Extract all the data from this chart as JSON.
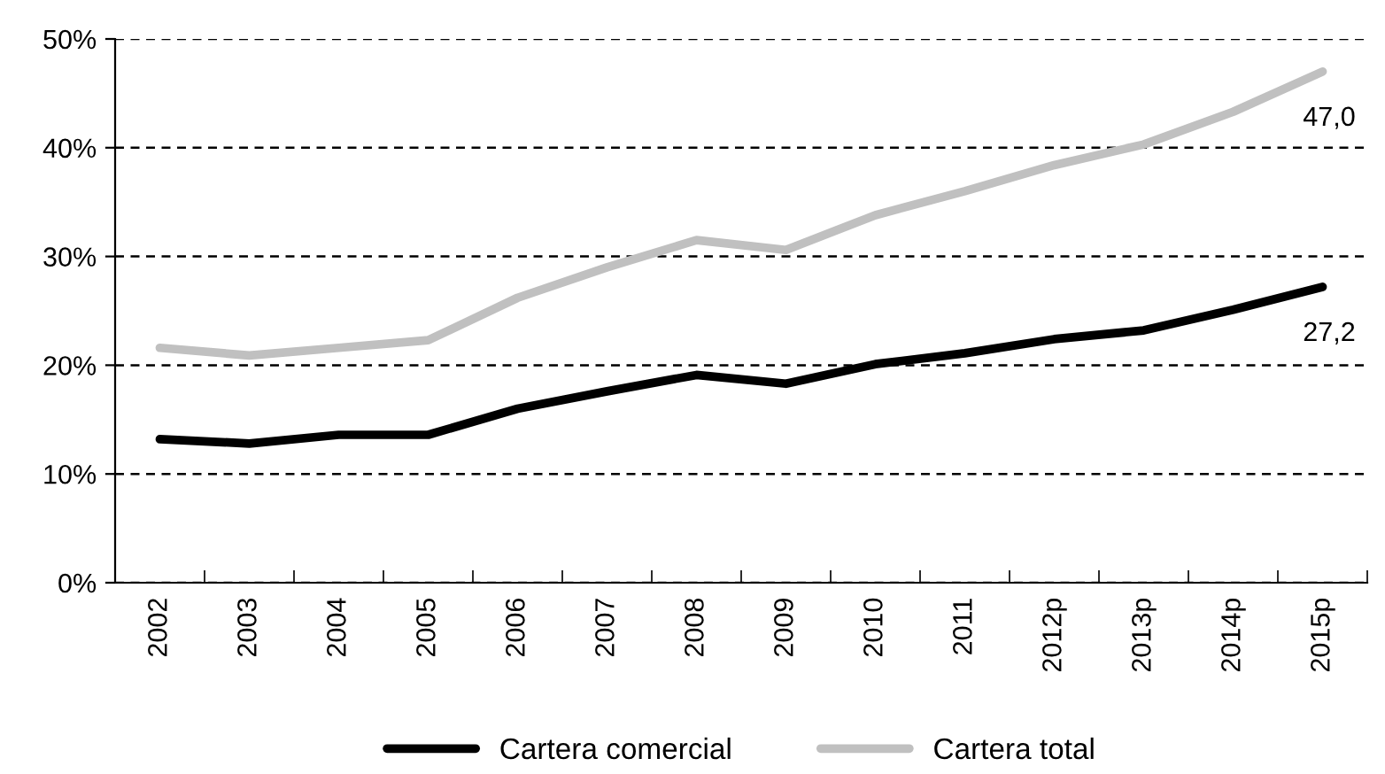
{
  "chart_data": {
    "type": "line",
    "categories": [
      "2002",
      "2003",
      "2004",
      "2005",
      "2006",
      "2007",
      "2008",
      "2009",
      "2010",
      "2011",
      "2012p",
      "2013p",
      "2014p",
      "2015p"
    ],
    "series": [
      {
        "name": "Cartera comercial",
        "color": "#000000",
        "values": [
          13.2,
          12.8,
          13.6,
          13.6,
          16.0,
          17.6,
          19.1,
          18.3,
          20.1,
          21.1,
          22.4,
          23.2,
          25.1,
          27.2
        ],
        "value_labels": [
          null,
          null,
          null,
          null,
          null,
          null,
          null,
          null,
          null,
          null,
          null,
          null,
          null,
          "27,2"
        ]
      },
      {
        "name": "Cartera total",
        "color": "#c0c0c0",
        "values": [
          21.6,
          20.9,
          21.6,
          22.3,
          26.2,
          29.0,
          31.5,
          30.6,
          33.8,
          36.0,
          38.4,
          40.3,
          43.3,
          47.0
        ],
        "value_labels": [
          null,
          null,
          null,
          null,
          null,
          null,
          null,
          null,
          null,
          null,
          null,
          null,
          null,
          "47,0"
        ]
      }
    ],
    "ylim": [
      0,
      50
    ],
    "yticks": [
      {
        "value": 0,
        "label": "0%"
      },
      {
        "value": 10,
        "label": "10%"
      },
      {
        "value": 20,
        "label": "20%"
      },
      {
        "value": 30,
        "label": "30%"
      },
      {
        "value": 40,
        "label": "40%"
      },
      {
        "value": 50,
        "label": "50%"
      }
    ],
    "grid": "y",
    "legend": "bottom",
    "marker": "none",
    "line_style": "solid"
  }
}
